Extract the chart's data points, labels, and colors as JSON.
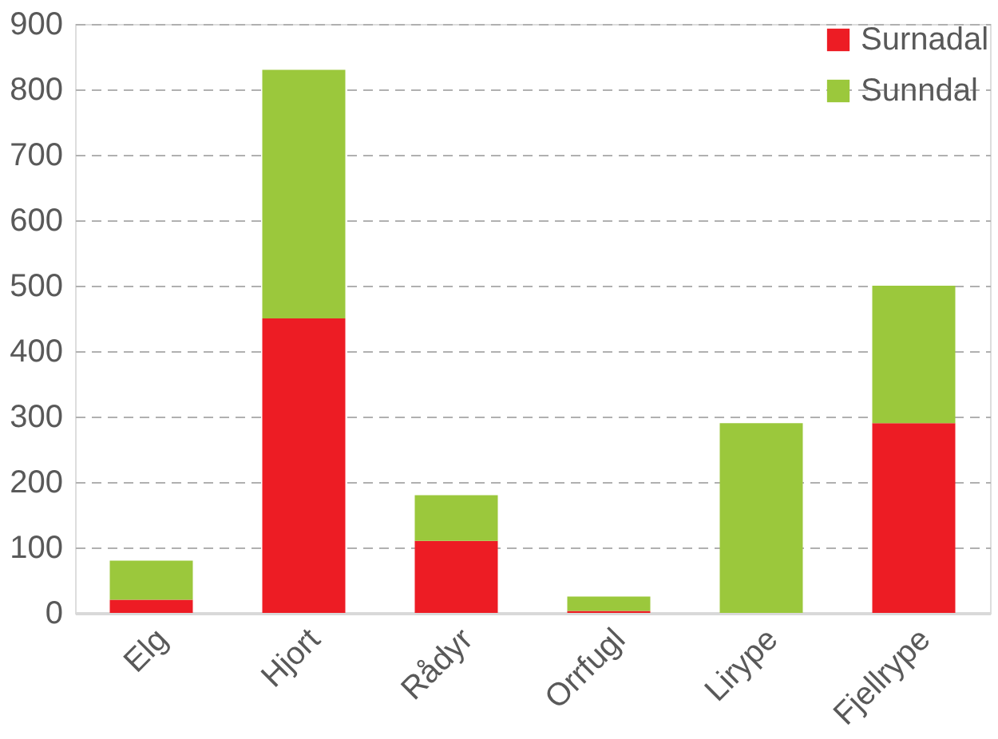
{
  "chart_data": {
    "type": "bar",
    "stacked": true,
    "categories": [
      "Elg",
      "Hjort",
      "Rådyr",
      "Orrfugl",
      "Lirype",
      "Fjellrype"
    ],
    "series": [
      {
        "name": "Surnadal",
        "color": "#ed1c24",
        "values": [
          20,
          450,
          110,
          3,
          0,
          290
        ]
      },
      {
        "name": "Sunndal",
        "color": "#9bc83c",
        "values": [
          60,
          380,
          70,
          22,
          290,
          210
        ]
      }
    ],
    "ylim": [
      0,
      900
    ],
    "yticks": [
      0,
      100,
      200,
      300,
      400,
      500,
      600,
      700,
      800,
      900
    ],
    "grid": "y",
    "legend": "top right"
  }
}
